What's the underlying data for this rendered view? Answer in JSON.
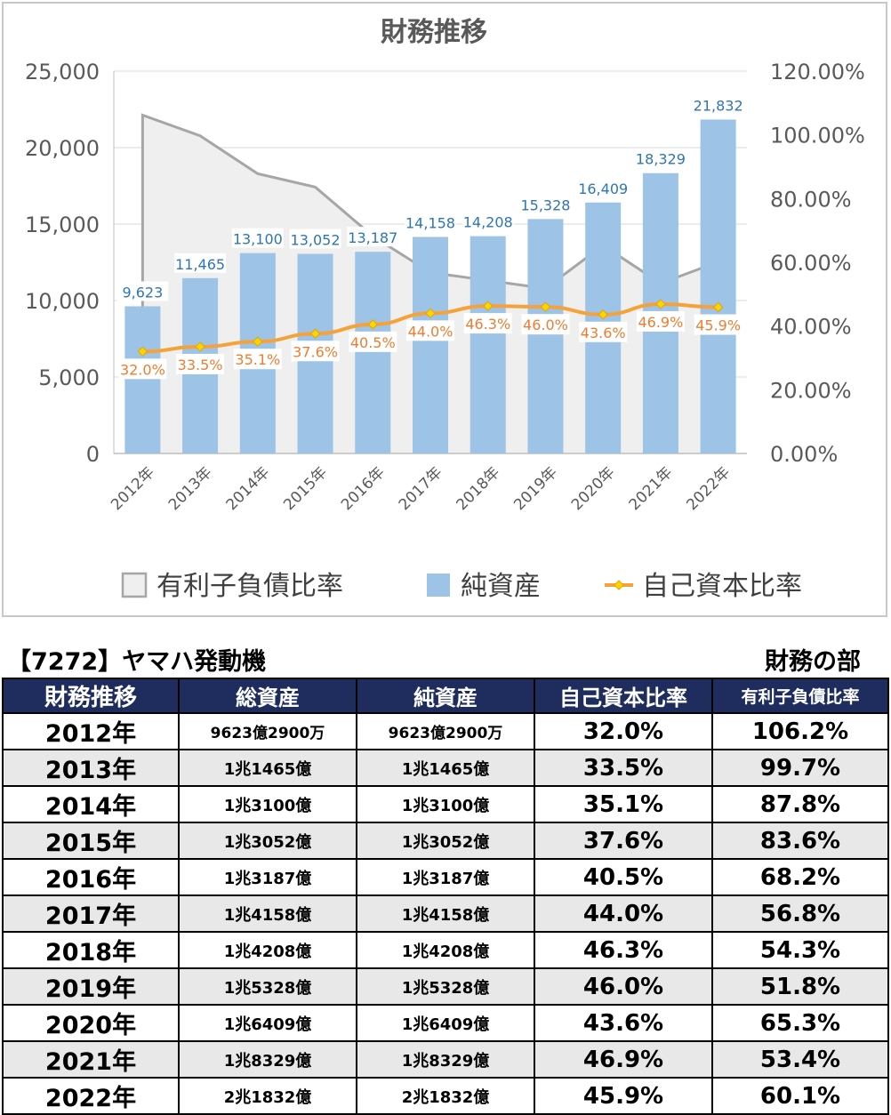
{
  "chart_data": {
    "type": "bar",
    "title": "財務推移",
    "categories": [
      "2012年",
      "2013年",
      "2014年",
      "2015年",
      "2016年",
      "2017年",
      "2018年",
      "2019年",
      "2020年",
      "2021年",
      "2022年"
    ],
    "left_axis": {
      "ylim": [
        0,
        25000
      ],
      "ticks": [
        "0",
        "5,000",
        "10,000",
        "15,000",
        "20,000",
        "25,000"
      ]
    },
    "right_axis": {
      "ylim": [
        0,
        120
      ],
      "ticks": [
        "0.00%",
        "20.00%",
        "40.00%",
        "60.00%",
        "80.00%",
        "100.00%",
        "120.00%"
      ]
    },
    "series": [
      {
        "name": "有利子負債比率",
        "kind": "area",
        "axis": "right",
        "color": "#a6a6a6",
        "values": [
          106.2,
          99.7,
          87.8,
          83.6,
          68.2,
          56.8,
          54.3,
          51.8,
          65.3,
          53.4,
          60.1
        ]
      },
      {
        "name": "純資産",
        "kind": "bar",
        "axis": "left",
        "color": "#9dc3e6",
        "values": [
          9623,
          11465,
          13100,
          13052,
          13187,
          14158,
          14208,
          15328,
          16409,
          18329,
          21832
        ],
        "labels": [
          "9,623",
          "11,465",
          "13,100",
          "13,052",
          "13,187",
          "14,158",
          "14,208",
          "15,328",
          "16,409",
          "18,329",
          "21,832"
        ]
      },
      {
        "name": "自己資本比率",
        "kind": "line",
        "axis": "right",
        "color": "#f5a23a",
        "values": [
          32.0,
          33.5,
          35.1,
          37.6,
          40.5,
          44.0,
          46.3,
          46.0,
          43.6,
          46.9,
          45.9
        ],
        "labels": [
          "32.0%",
          "33.5%",
          "35.1%",
          "37.6%",
          "40.5%",
          "44.0%",
          "46.3%",
          "46.0%",
          "43.6%",
          "46.9%",
          "45.9%"
        ]
      }
    ],
    "legend": "bottom",
    "grid": true
  },
  "header": {
    "company": "【7272】ヤマハ発動機",
    "section": "財務の部"
  },
  "table": {
    "columns": [
      "財務推移",
      "総資産",
      "純資産",
      "自己資本比率",
      "有利子負債比率"
    ],
    "rows": [
      [
        "2012年",
        "9623億2900万",
        "9623億2900万",
        "32.0%",
        "106.2%"
      ],
      [
        "2013年",
        "1兆1465億",
        "1兆1465億",
        "33.5%",
        "99.7%"
      ],
      [
        "2014年",
        "1兆3100億",
        "1兆3100億",
        "35.1%",
        "87.8%"
      ],
      [
        "2015年",
        "1兆3052億",
        "1兆3052億",
        "37.6%",
        "83.6%"
      ],
      [
        "2016年",
        "1兆3187億",
        "1兆3187億",
        "40.5%",
        "68.2%"
      ],
      [
        "2017年",
        "1兆4158億",
        "1兆4158億",
        "44.0%",
        "56.8%"
      ],
      [
        "2018年",
        "1兆4208億",
        "1兆4208億",
        "46.3%",
        "54.3%"
      ],
      [
        "2019年",
        "1兆5328億",
        "1兆5328億",
        "46.0%",
        "51.8%"
      ],
      [
        "2020年",
        "1兆6409億",
        "1兆6409億",
        "43.6%",
        "65.3%"
      ],
      [
        "2021年",
        "1兆8329億",
        "1兆8329億",
        "46.9%",
        "53.4%"
      ],
      [
        "2022年",
        "2兆1832億",
        "2兆1832億",
        "45.9%",
        "60.1%"
      ]
    ]
  }
}
